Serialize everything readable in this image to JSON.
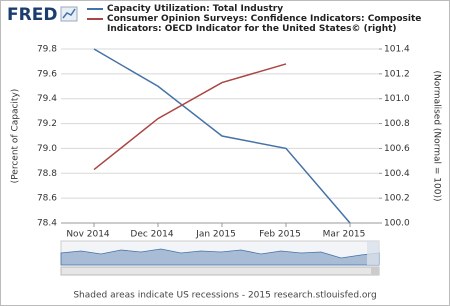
{
  "logo": "FRED",
  "footer": "Shaded areas indicate US recessions - 2015 research.stlouisfed.org",
  "chart_data": {
    "type": "line",
    "categories": [
      "Nov 2014",
      "Dec 2014",
      "Jan 2015",
      "Feb 2015",
      "Mar 2015"
    ],
    "series": [
      {
        "name": "Capacity Utilization: Total Industry",
        "color": "#4572a7",
        "values": [
          79.8,
          79.5,
          79.1,
          79.0,
          78.4
        ]
      },
      {
        "name": "Consumer Opinion Surveys: Confidence Indicators: Composite Indicators: OECD Indicator for the United States© (right)",
        "color": "#aa4643",
        "axis": "y2",
        "values": [
          100.43,
          100.84,
          101.13,
          101.28,
          null
        ]
      }
    ],
    "ylabel": "(Percent of Capacity)",
    "y2label": "(Normalised (Normal = 100))",
    "ylim": [
      78.4,
      79.8
    ],
    "yticks": [
      78.4,
      78.6,
      78.8,
      {
        "value": 79,
        "label": "79.0"
      },
      79.2,
      79.4,
      79.6,
      79.8
    ],
    "y2lim": [
      100,
      101.4
    ],
    "y2ticks": [
      {
        "value": 100,
        "label": "100.0"
      },
      100.2,
      100.4,
      100.6,
      100.8,
      {
        "value": 101,
        "label": "101.0"
      },
      101.2,
      101.4
    ],
    "grid": true
  }
}
